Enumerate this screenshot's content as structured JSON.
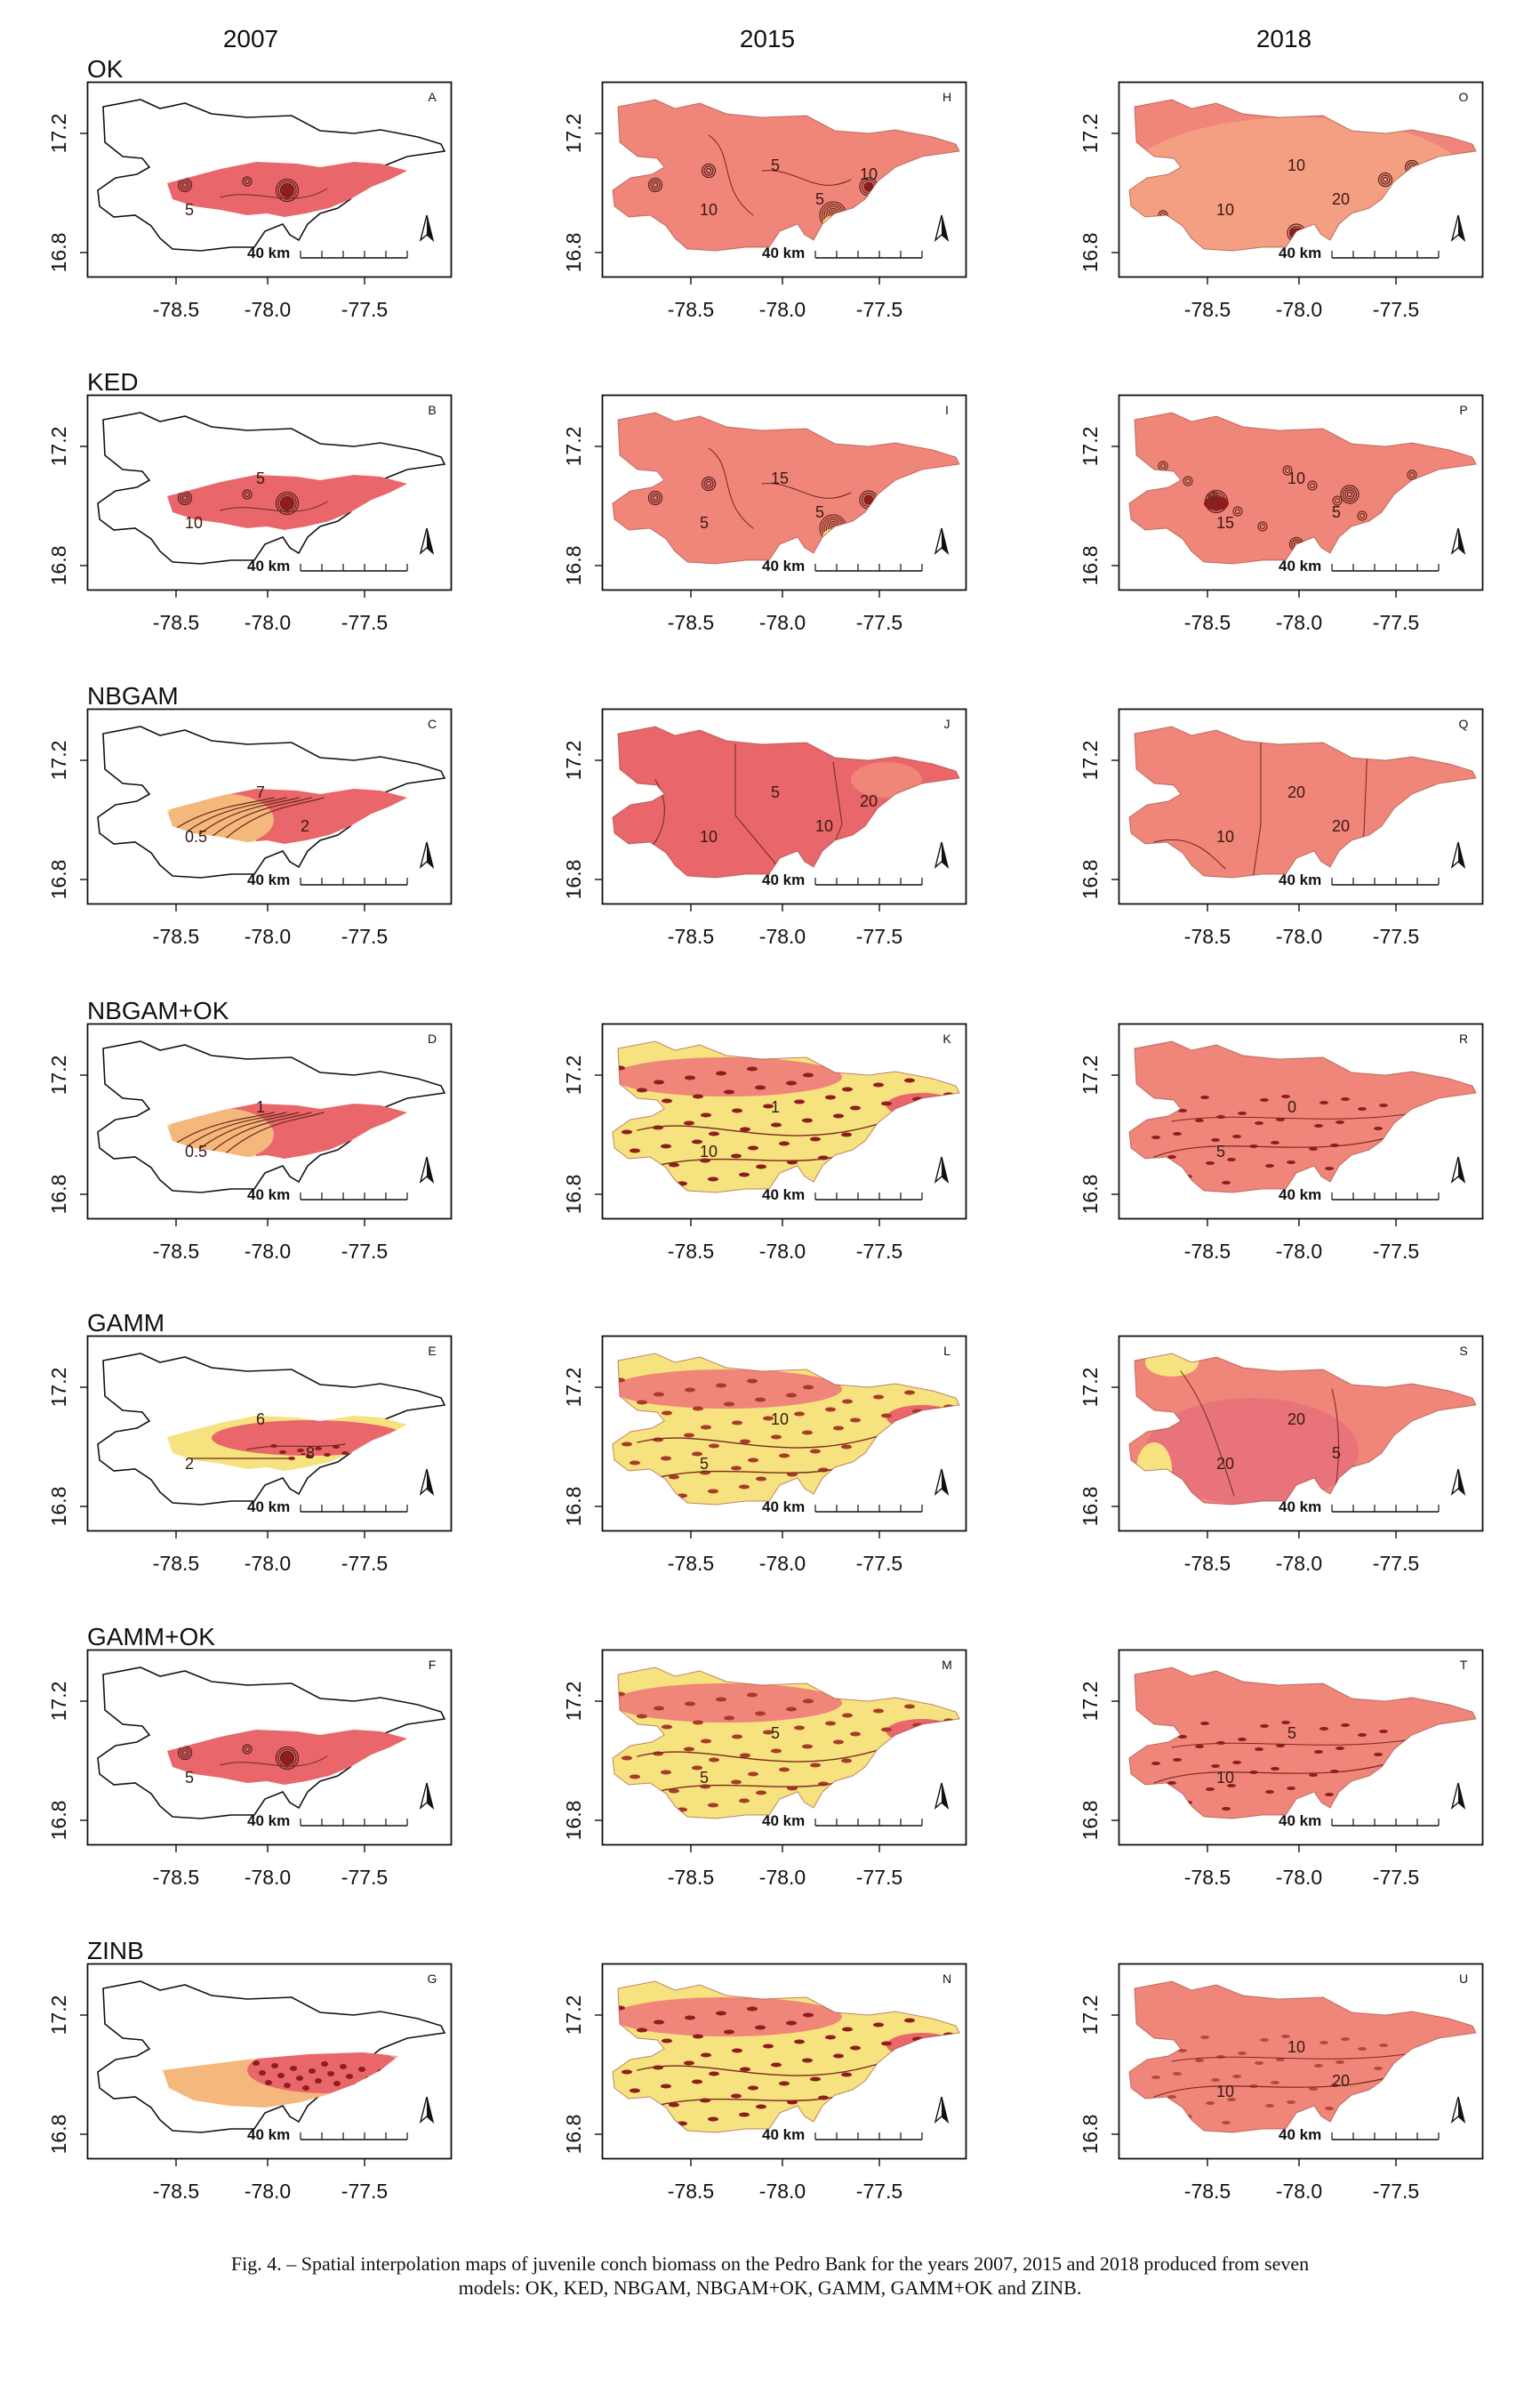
{
  "figure": {
    "years": [
      "2007",
      "2015",
      "2018"
    ],
    "models": [
      "OK",
      "KED",
      "NBGAM",
      "NBGAM+OK",
      "GAMM",
      "GAMM+OK",
      "ZINB"
    ],
    "panel_letters": [
      [
        "A",
        "H",
        "O"
      ],
      [
        "B",
        "I",
        "P"
      ],
      [
        "C",
        "J",
        "Q"
      ],
      [
        "D",
        "K",
        "R"
      ],
      [
        "E",
        "L",
        "S"
      ],
      [
        "F",
        "M",
        "T"
      ],
      [
        "G",
        "N",
        "U"
      ]
    ],
    "x_ticks": [
      "-78.5",
      "-78.0",
      "-77.5"
    ],
    "y_ticks": [
      "17.2",
      "16.8"
    ],
    "scale_label": "40 km",
    "caption_line1": "Fig. 4. – Spatial interpolation maps of juvenile conch biomass on the Pedro Bank for the years 2007, 2015 and 2018 produced from seven",
    "caption_line2": "models: OK, KED, NBGAM, NBGAM+OK, GAMM, GAMM+OK and ZINB.",
    "panel_contour_labels": [
      [
        [
          "5"
        ],
        [
          "10",
          "5",
          "5",
          "10"
        ],
        [
          "10",
          "10",
          "20"
        ]
      ],
      [
        [
          "10",
          "5"
        ],
        [
          "5",
          "15",
          "5"
        ],
        [
          "15",
          "10",
          "5"
        ]
      ],
      [
        [
          "0.5",
          "7",
          "2"
        ],
        [
          "10",
          "5",
          "10",
          "20"
        ],
        [
          "10",
          "20",
          "20"
        ]
      ],
      [
        [
          "0.5",
          "1"
        ],
        [
          "10",
          "1"
        ],
        [
          "5",
          "0"
        ]
      ],
      [
        [
          "2",
          "6",
          "-8"
        ],
        [
          "5",
          "10"
        ],
        [
          "20",
          "20",
          "5"
        ]
      ],
      [
        [
          "5"
        ],
        [
          "5",
          "5"
        ],
        [
          "10",
          "5"
        ]
      ],
      [
        [],
        [],
        [
          "10",
          "10",
          "20"
        ]
      ]
    ],
    "colors": {
      "low": "#f6e27e",
      "mid": "#f4b77c",
      "salmon": "#f0857a",
      "high": "#e9666a",
      "peak": "#8e1e1e",
      "outline": "#111111"
    }
  }
}
